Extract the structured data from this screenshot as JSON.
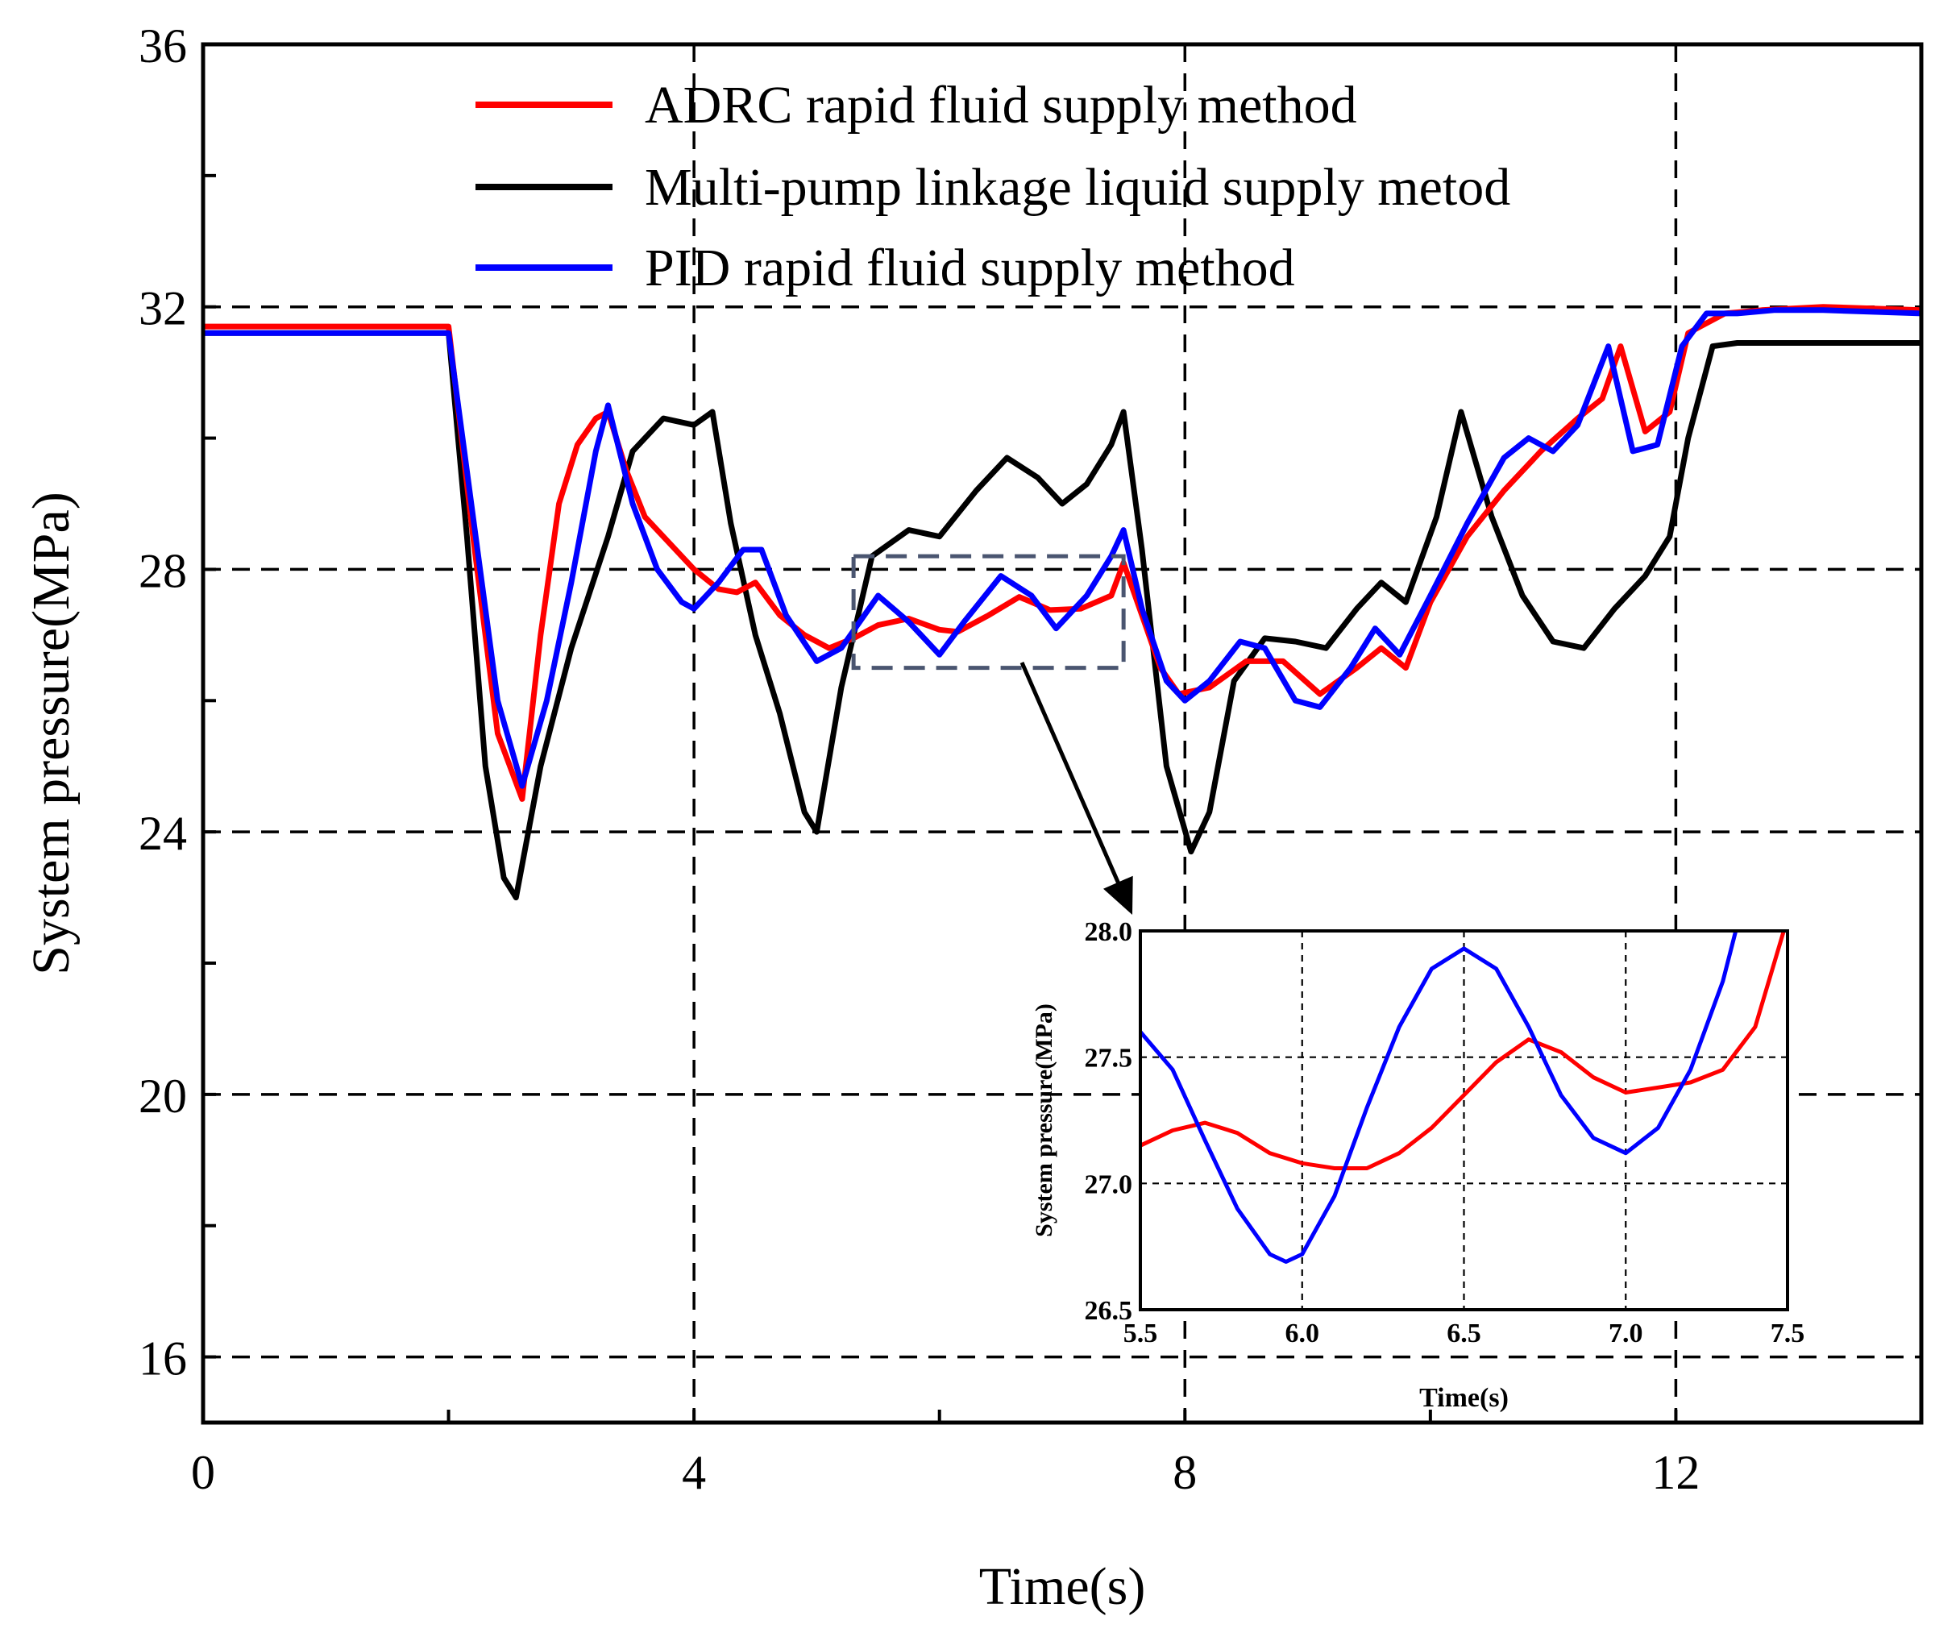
{
  "chart_data": {
    "type": "line",
    "xlabel": "Time(s)",
    "ylabel": "System pressure(MPa)",
    "xlim": [
      0,
      14
    ],
    "ylim": [
      15,
      36
    ],
    "xticks": [
      0,
      4,
      8,
      12
    ],
    "yticks": [
      16,
      20,
      24,
      28,
      32,
      36
    ],
    "grid": "dashed",
    "legend_position": "top",
    "series": [
      {
        "name": "ADRC rapid fluid supply method",
        "color": "#ff0000",
        "points": [
          [
            0,
            31.7
          ],
          [
            2.0,
            31.7
          ],
          [
            2.2,
            28.5
          ],
          [
            2.4,
            25.5
          ],
          [
            2.6,
            24.5
          ],
          [
            2.75,
            27.0
          ],
          [
            2.9,
            29.0
          ],
          [
            3.05,
            29.9
          ],
          [
            3.2,
            30.3
          ],
          [
            3.3,
            30.4
          ],
          [
            3.45,
            29.5
          ],
          [
            3.6,
            28.8
          ],
          [
            3.8,
            28.4
          ],
          [
            4.0,
            28.0
          ],
          [
            4.2,
            27.7
          ],
          [
            4.35,
            27.65
          ],
          [
            4.5,
            27.8
          ],
          [
            4.7,
            27.3
          ],
          [
            4.9,
            27.0
          ],
          [
            5.1,
            26.8
          ],
          [
            5.3,
            26.95
          ],
          [
            5.5,
            27.15
          ],
          [
            5.75,
            27.25
          ],
          [
            6.0,
            27.08
          ],
          [
            6.15,
            27.05
          ],
          [
            6.4,
            27.3
          ],
          [
            6.65,
            27.58
          ],
          [
            6.9,
            27.38
          ],
          [
            7.15,
            27.4
          ],
          [
            7.4,
            27.6
          ],
          [
            7.5,
            28.1
          ],
          [
            7.65,
            27.3
          ],
          [
            7.8,
            26.5
          ],
          [
            7.95,
            26.1
          ],
          [
            8.2,
            26.2
          ],
          [
            8.5,
            26.6
          ],
          [
            8.8,
            26.6
          ],
          [
            9.1,
            26.1
          ],
          [
            9.4,
            26.5
          ],
          [
            9.6,
            26.8
          ],
          [
            9.8,
            26.5
          ],
          [
            10.0,
            27.5
          ],
          [
            10.3,
            28.5
          ],
          [
            10.6,
            29.2
          ],
          [
            10.9,
            29.8
          ],
          [
            11.2,
            30.3
          ],
          [
            11.4,
            30.6
          ],
          [
            11.55,
            31.4
          ],
          [
            11.75,
            30.1
          ],
          [
            11.95,
            30.4
          ],
          [
            12.1,
            31.6
          ],
          [
            12.2,
            31.7
          ],
          [
            12.4,
            31.9
          ],
          [
            12.7,
            31.95
          ],
          [
            13.2,
            32.0
          ],
          [
            14.0,
            31.95
          ]
        ]
      },
      {
        "name": "Multi-pump linkage liquid supply metod",
        "color": "#000000",
        "points": [
          [
            0,
            31.6
          ],
          [
            2.0,
            31.6
          ],
          [
            2.15,
            28.5
          ],
          [
            2.3,
            25.0
          ],
          [
            2.45,
            23.3
          ],
          [
            2.55,
            23.0
          ],
          [
            2.75,
            25.0
          ],
          [
            3.0,
            26.8
          ],
          [
            3.3,
            28.5
          ],
          [
            3.5,
            29.8
          ],
          [
            3.75,
            30.3
          ],
          [
            4.0,
            30.2
          ],
          [
            4.15,
            30.4
          ],
          [
            4.3,
            28.7
          ],
          [
            4.5,
            27.0
          ],
          [
            4.7,
            25.8
          ],
          [
            4.9,
            24.3
          ],
          [
            5.0,
            24.0
          ],
          [
            5.2,
            26.2
          ],
          [
            5.45,
            28.2
          ],
          [
            5.75,
            28.6
          ],
          [
            6.0,
            28.5
          ],
          [
            6.3,
            29.2
          ],
          [
            6.55,
            29.7
          ],
          [
            6.8,
            29.4
          ],
          [
            7.0,
            29.0
          ],
          [
            7.2,
            29.3
          ],
          [
            7.4,
            29.9
          ],
          [
            7.5,
            30.4
          ],
          [
            7.65,
            28.3
          ],
          [
            7.85,
            25.0
          ],
          [
            8.05,
            23.7
          ],
          [
            8.2,
            24.3
          ],
          [
            8.4,
            26.3
          ],
          [
            8.65,
            26.95
          ],
          [
            8.9,
            26.9
          ],
          [
            9.15,
            26.8
          ],
          [
            9.4,
            27.4
          ],
          [
            9.6,
            27.8
          ],
          [
            9.8,
            27.5
          ],
          [
            10.05,
            28.8
          ],
          [
            10.25,
            30.4
          ],
          [
            10.5,
            28.8
          ],
          [
            10.75,
            27.6
          ],
          [
            11.0,
            26.9
          ],
          [
            11.25,
            26.8
          ],
          [
            11.5,
            27.4
          ],
          [
            11.75,
            27.9
          ],
          [
            11.95,
            28.5
          ],
          [
            12.1,
            30.0
          ],
          [
            12.3,
            31.4
          ],
          [
            12.5,
            31.45
          ],
          [
            13.0,
            31.45
          ],
          [
            14.0,
            31.45
          ]
        ]
      },
      {
        "name": "PID rapid fluid supply method",
        "color": "#0000ff",
        "points": [
          [
            0,
            31.6
          ],
          [
            2.0,
            31.6
          ],
          [
            2.2,
            28.8
          ],
          [
            2.4,
            26.0
          ],
          [
            2.6,
            24.7
          ],
          [
            2.8,
            26.0
          ],
          [
            3.0,
            27.8
          ],
          [
            3.2,
            29.8
          ],
          [
            3.3,
            30.5
          ],
          [
            3.5,
            29.0
          ],
          [
            3.7,
            28.0
          ],
          [
            3.9,
            27.5
          ],
          [
            4.0,
            27.4
          ],
          [
            4.2,
            27.8
          ],
          [
            4.4,
            28.3
          ],
          [
            4.55,
            28.3
          ],
          [
            4.75,
            27.3
          ],
          [
            5.0,
            26.6
          ],
          [
            5.2,
            26.8
          ],
          [
            5.5,
            27.6
          ],
          [
            5.75,
            27.2
          ],
          [
            6.0,
            26.7
          ],
          [
            6.2,
            27.2
          ],
          [
            6.5,
            27.9
          ],
          [
            6.75,
            27.6
          ],
          [
            6.95,
            27.1
          ],
          [
            7.2,
            27.6
          ],
          [
            7.4,
            28.2
          ],
          [
            7.5,
            28.6
          ],
          [
            7.65,
            27.4
          ],
          [
            7.85,
            26.3
          ],
          [
            8.0,
            26.0
          ],
          [
            8.2,
            26.3
          ],
          [
            8.45,
            26.9
          ],
          [
            8.65,
            26.8
          ],
          [
            8.9,
            26.0
          ],
          [
            9.1,
            25.9
          ],
          [
            9.35,
            26.5
          ],
          [
            9.55,
            27.1
          ],
          [
            9.75,
            26.7
          ],
          [
            10.0,
            27.6
          ],
          [
            10.3,
            28.7
          ],
          [
            10.6,
            29.7
          ],
          [
            10.8,
            30.0
          ],
          [
            11.0,
            29.8
          ],
          [
            11.2,
            30.2
          ],
          [
            11.45,
            31.4
          ],
          [
            11.65,
            29.8
          ],
          [
            11.85,
            29.9
          ],
          [
            12.05,
            31.4
          ],
          [
            12.25,
            31.9
          ],
          [
            12.5,
            31.9
          ],
          [
            12.8,
            31.95
          ],
          [
            13.2,
            31.95
          ],
          [
            14.0,
            31.9
          ]
        ]
      }
    ],
    "inset": {
      "xlabel": "Time(s)",
      "ylabel": "System pressure(MPa)",
      "xlim": [
        5.5,
        7.5
      ],
      "ylim": [
        26.5,
        28.0
      ],
      "xticks": [
        "5.5",
        "6.0",
        "6.5",
        "7.0",
        "7.5"
      ],
      "yticks": [
        "26.5",
        "27.0",
        "27.5",
        "28.0"
      ],
      "zoom_region": {
        "x": [
          5.3,
          7.5
        ],
        "y": [
          26.5,
          28.2
        ]
      },
      "series": [
        {
          "name": "ADRC rapid fluid supply method",
          "color": "#ff0000",
          "points": [
            [
              5.5,
              27.15
            ],
            [
              5.6,
              27.21
            ],
            [
              5.7,
              27.24
            ],
            [
              5.8,
              27.2
            ],
            [
              5.9,
              27.12
            ],
            [
              6.0,
              27.08
            ],
            [
              6.1,
              27.06
            ],
            [
              6.2,
              27.06
            ],
            [
              6.3,
              27.12
            ],
            [
              6.4,
              27.22
            ],
            [
              6.5,
              27.35
            ],
            [
              6.6,
              27.48
            ],
            [
              6.7,
              27.57
            ],
            [
              6.8,
              27.52
            ],
            [
              6.9,
              27.42
            ],
            [
              7.0,
              27.36
            ],
            [
              7.1,
              27.38
            ],
            [
              7.2,
              27.4
            ],
            [
              7.3,
              27.45
            ],
            [
              7.4,
              27.62
            ],
            [
              7.5,
              28.05
            ]
          ]
        },
        {
          "name": "PID rapid fluid supply method",
          "color": "#0000ff",
          "points": [
            [
              5.5,
              27.6
            ],
            [
              5.6,
              27.45
            ],
            [
              5.7,
              27.17
            ],
            [
              5.8,
              26.9
            ],
            [
              5.9,
              26.72
            ],
            [
              5.95,
              26.69
            ],
            [
              6.0,
              26.72
            ],
            [
              6.1,
              26.95
            ],
            [
              6.2,
              27.3
            ],
            [
              6.3,
              27.62
            ],
            [
              6.4,
              27.85
            ],
            [
              6.5,
              27.93
            ],
            [
              6.6,
              27.85
            ],
            [
              6.7,
              27.62
            ],
            [
              6.8,
              27.35
            ],
            [
              6.9,
              27.18
            ],
            [
              7.0,
              27.12
            ],
            [
              7.1,
              27.22
            ],
            [
              7.2,
              27.45
            ],
            [
              7.3,
              27.8
            ],
            [
              7.35,
              28.05
            ]
          ]
        }
      ]
    }
  }
}
